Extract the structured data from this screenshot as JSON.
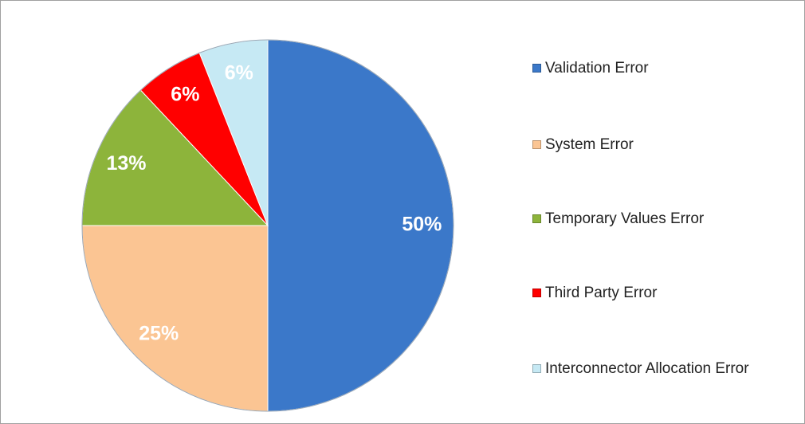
{
  "chart_data": {
    "type": "pie",
    "categories": [
      "Validation Error",
      "System Error",
      "Temporary Values Error",
      "Third Party Error",
      "Interconnector Allocation Error"
    ],
    "values": [
      50,
      25,
      13,
      6,
      6
    ],
    "value_labels": [
      "50%",
      "25%",
      "13%",
      "6%",
      "6%"
    ],
    "colors": [
      "#3b78c9",
      "#fbc593",
      "#8db43b",
      "#ff0000",
      "#c6e9f4"
    ],
    "legend": "right"
  }
}
